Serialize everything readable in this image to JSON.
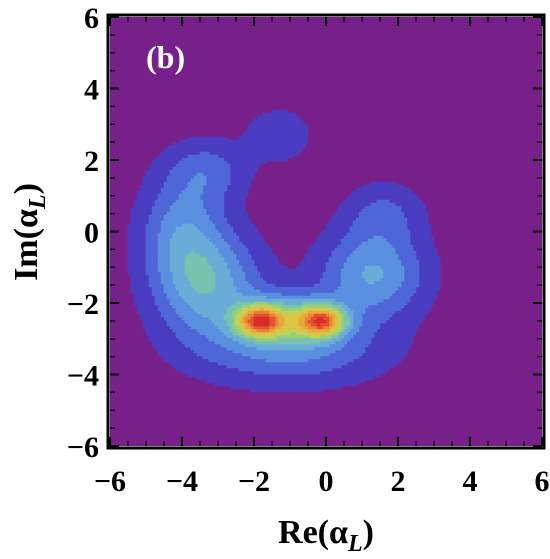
{
  "chart_data": {
    "type": "contour",
    "panel_label": "(b)",
    "xlabel": "Re(α",
    "xlabel_sub": "L",
    "ylabel": "Im(α",
    "ylabel_sub": "L",
    "close_paren": ")",
    "xlim": [
      -6,
      6
    ],
    "ylim": [
      -6,
      6
    ],
    "xticks": [
      -6,
      -4,
      -2,
      0,
      2,
      4,
      6
    ],
    "yticks": [
      -6,
      -4,
      -2,
      0,
      2,
      4,
      6
    ],
    "xtick_labels": [
      "−6",
      "−4",
      "−2",
      "0",
      "2",
      "4",
      "6"
    ],
    "ytick_labels": [
      "−6",
      "−4",
      "−2",
      "0",
      "2",
      "4",
      "6"
    ],
    "background_color": "#78208a",
    "colors": [
      "#4a3cc0",
      "#4e66d8",
      "#5b8fe0",
      "#6aacd8",
      "#79c2b0",
      "#95cf7a",
      "#bfd25a",
      "#dcc444",
      "#e9a83c",
      "#ea8434",
      "#e35330",
      "#dc2a24"
    ],
    "peaks": [
      {
        "x": -1.85,
        "y": -2.5
      },
      {
        "x": -0.1,
        "y": -2.5
      }
    ]
  }
}
